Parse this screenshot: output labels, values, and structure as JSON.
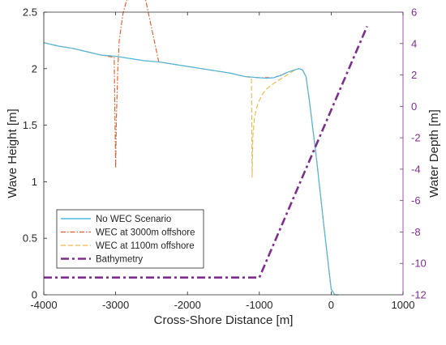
{
  "chart_data": {
    "type": "line",
    "title": "",
    "xlabel": "Cross-Shore Distance [m]",
    "ylabel_left": "Wave Height [m]",
    "ylabel_right": "Water Depth [m]",
    "xlim": [
      -4000,
      1000
    ],
    "ylim_left": [
      0,
      2.5
    ],
    "ylim_right": [
      -12,
      6
    ],
    "x_ticks": [
      -4000,
      -3000,
      -2000,
      -1000,
      0,
      1000
    ],
    "y_left_ticks": [
      0,
      0.5,
      1,
      1.5,
      2,
      2.5
    ],
    "y_right_ticks": [
      -12,
      -10,
      -8,
      -6,
      -4,
      -2,
      0,
      2,
      4,
      6
    ],
    "grid": false,
    "legend_position": "bottom-left",
    "colors": {
      "no_wec": "#4db8e0",
      "wec_3000": "#e05a28",
      "wec_1100": "#f0b840",
      "bathymetry": "#7e2f8e",
      "right_axis": "#7e2f8e",
      "left_axis": "#262626"
    },
    "series": [
      {
        "name": "No WEC Scenario",
        "axis": "left",
        "style": "solid",
        "x": [
          -4000,
          -3800,
          -3600,
          -3400,
          -3200,
          -3000,
          -2800,
          -2600,
          -2400,
          -2200,
          -2000,
          -1800,
          -1600,
          -1400,
          -1200,
          -1000,
          -900,
          -800,
          -700,
          -600,
          -500,
          -450,
          -400,
          -350,
          -300,
          -200,
          -100,
          0,
          50,
          100
        ],
        "y": [
          2.23,
          2.2,
          2.18,
          2.15,
          2.12,
          2.11,
          2.09,
          2.07,
          2.06,
          2.04,
          2.02,
          2.0,
          1.98,
          1.96,
          1.93,
          1.92,
          1.915,
          1.92,
          1.94,
          1.97,
          1.99,
          2.0,
          1.99,
          1.93,
          1.7,
          1.18,
          0.6,
          0.05,
          0.0,
          0.0
        ]
      },
      {
        "name": "WEC at 3000m offshore",
        "axis": "left",
        "style": "dash-dot",
        "x": [
          -4000,
          -3800,
          -3600,
          -3400,
          -3200,
          -3020,
          -3010,
          -3000,
          -2990,
          -2970,
          -2950,
          -2900,
          -2850,
          -2800,
          -2700,
          -2600,
          -2400,
          -2200,
          -2000,
          -1800,
          -1600,
          -1400,
          -1200,
          -1000,
          -800,
          -600,
          -500,
          -450,
          -400,
          -350,
          -300,
          -200,
          -100,
          0,
          50,
          100
        ],
        "y": [
          2.23,
          2.2,
          2.18,
          2.15,
          2.12,
          2.1,
          1.6,
          1.12,
          1.55,
          2.0,
          2.25,
          2.48,
          2.6,
          2.65,
          2.68,
          2.66,
          2.06,
          2.04,
          2.02,
          2.0,
          1.98,
          1.96,
          1.93,
          1.92,
          1.92,
          1.97,
          1.99,
          2.0,
          1.99,
          1.93,
          1.7,
          1.18,
          0.6,
          0.05,
          0.0,
          0.0
        ]
      },
      {
        "name": "WEC at 1100m offshore",
        "axis": "left",
        "style": "dashed",
        "x": [
          -4000,
          -3800,
          -3600,
          -3400,
          -3200,
          -3000,
          -2800,
          -2600,
          -2400,
          -2200,
          -2000,
          -1800,
          -1600,
          -1400,
          -1200,
          -1110,
          -1105,
          -1100,
          -1090,
          -1070,
          -1040,
          -1000,
          -950,
          -900,
          -800,
          -700,
          -600,
          -500,
          -450,
          -400,
          -350,
          -300,
          -200,
          -100,
          0,
          50,
          100
        ],
        "y": [
          2.23,
          2.2,
          2.18,
          2.15,
          2.12,
          2.11,
          2.09,
          2.07,
          2.06,
          2.04,
          2.02,
          2.0,
          1.98,
          1.96,
          1.93,
          1.92,
          1.5,
          1.04,
          1.4,
          1.55,
          1.65,
          1.72,
          1.78,
          1.82,
          1.87,
          1.91,
          1.95,
          1.99,
          2.0,
          1.99,
          1.93,
          1.7,
          1.18,
          0.6,
          0.05,
          0.0,
          0.0
        ]
      },
      {
        "name": "Bathymetry",
        "axis": "right",
        "style": "thick-dash-dot",
        "x": [
          -4000,
          -1000,
          500
        ],
        "y": [
          -10.9,
          -10.9,
          5.1
        ]
      }
    ],
    "legend": [
      "No WEC Scenario",
      "WEC at 3000m offshore",
      "WEC at 1100m offshore",
      "Bathymetry"
    ]
  }
}
